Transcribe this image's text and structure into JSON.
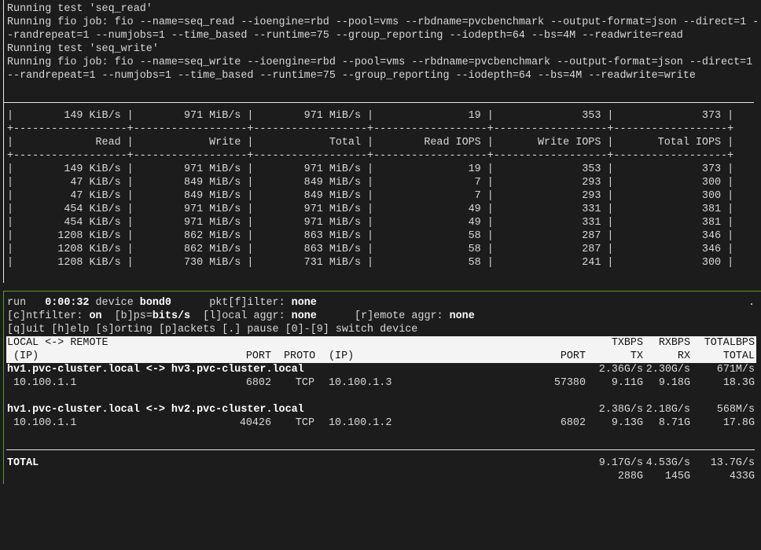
{
  "top_pane": {
    "lines": [
      "Running test 'seq_read'",
      "Running fio job: fio --name=seq_read --ioengine=rbd --pool=vms --rbdname=pvcbenchmark --output-format=json --direct=1 -",
      "-randrepeat=1 --numjobs=1 --time_based --runtime=75 --group_reporting --iodepth=64 --bs=4M --readwrite=read",
      "Running test 'seq_write'",
      "Running fio job: fio --name=seq_write --ioengine=rbd --pool=vms --rbdname=pvcbenchmark --output-format=json --direct=1",
      "--randrepeat=1 --numjobs=1 --time_based --runtime=75 --group_reporting --iodepth=64 --bs=4M --readwrite=write"
    ]
  },
  "stats_table": {
    "current": [
      "149 KiB/s",
      "971 MiB/s",
      "971 MiB/s",
      "19",
      "353",
      "373"
    ],
    "headers": [
      "Read",
      "Write",
      "Total",
      "Read IOPS",
      "Write IOPS",
      "Total IOPS"
    ],
    "rows": [
      [
        "149 KiB/s",
        "971 MiB/s",
        "971 MiB/s",
        "19",
        "353",
        "373"
      ],
      [
        "47 KiB/s",
        "849 MiB/s",
        "849 MiB/s",
        "7",
        "293",
        "300"
      ],
      [
        "47 KiB/s",
        "849 MiB/s",
        "849 MiB/s",
        "7",
        "293",
        "300"
      ],
      [
        "454 KiB/s",
        "971 MiB/s",
        "971 MiB/s",
        "49",
        "331",
        "381"
      ],
      [
        "454 KiB/s",
        "971 MiB/s",
        "971 MiB/s",
        "49",
        "331",
        "381"
      ],
      [
        "1208 KiB/s",
        "862 MiB/s",
        "863 MiB/s",
        "58",
        "287",
        "346"
      ],
      [
        "1208 KiB/s",
        "862 MiB/s",
        "863 MiB/s",
        "58",
        "287",
        "346"
      ],
      [
        "1208 KiB/s",
        "730 MiB/s",
        "731 MiB/s",
        "58",
        "241",
        "300"
      ]
    ]
  },
  "iptraf": {
    "status": {
      "run_label": "run",
      "elapsed": "0:00:32",
      "device_label": "device",
      "device": "bond0",
      "pktfilter_label": "pkt[f]ilter:",
      "pktfilter": "none",
      "dot": ".",
      "cntfilter_label": "[c]ntfilter:",
      "cntfilter": "on",
      "bps_label": "[b]ps=",
      "bps": "bits/s",
      "local_aggr_label": "[l]ocal aggr:",
      "local_aggr": "none",
      "remote_aggr_label": "[r]emote aggr:",
      "remote_aggr": "none",
      "help": "[q]uit [h]elp [s]orting [p]ackets [.] pause [0]-[9] switch device"
    },
    "header": {
      "local_remote": "LOCAL <-> REMOTE",
      "txbps": "TXBPS",
      "rxbps": "RXBPS",
      "totalbps": "TOTALBPS",
      "local_ip": "(IP)",
      "port": "PORT",
      "proto": "PROTO",
      "remote_ip": "(IP)",
      "rport": "PORT",
      "tx": "TX",
      "rx": "RX",
      "total": "TOTAL"
    },
    "connections": [
      {
        "hosts": "hv1.pvc-cluster.local <-> hv3.pvc-cluster.local",
        "txbps": "2.36G/s",
        "rxbps": "2.30G/s",
        "totalbps": "671M/s",
        "local_ip": "10.100.1.1",
        "port": "6802",
        "proto": "TCP",
        "remote_ip": "10.100.1.3",
        "rport": "57380",
        "tx": "9.11G",
        "rx": "9.18G",
        "total": "18.3G"
      },
      {
        "hosts": "hv1.pvc-cluster.local <-> hv2.pvc-cluster.local",
        "txbps": "2.38G/s",
        "rxbps": "2.18G/s",
        "totalbps": "568M/s",
        "local_ip": "10.100.1.1",
        "port": "40426",
        "proto": "TCP",
        "remote_ip": "10.100.1.2",
        "rport": "6802",
        "tx": "9.13G",
        "rx": "8.71G",
        "total": "17.8G"
      }
    ],
    "total": {
      "label": "TOTAL",
      "txbps": "9.17G/s",
      "rxbps": "4.53G/s",
      "totalbps": "13.7G/s",
      "tx": "288G",
      "rx": "145G",
      "total": "433G"
    }
  }
}
